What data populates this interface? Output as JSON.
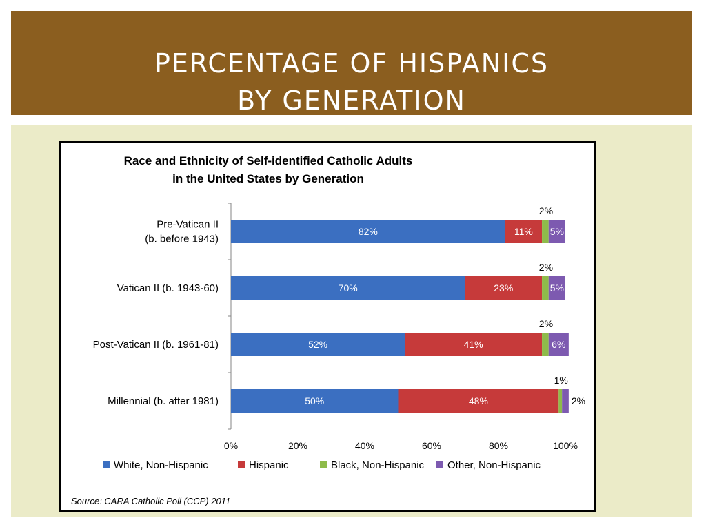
{
  "slide": {
    "title_line1": "PERCENTAGE OF HISPANICS",
    "title_line2": "BY GENERATION"
  },
  "colors": {
    "title_band": "#8b5e1f",
    "content_band": "#ebebc8",
    "series": [
      "#3b6fc1",
      "#c63a3a",
      "#8ebb4a",
      "#7d5ab0"
    ]
  },
  "chart_data": {
    "type": "bar",
    "orientation": "horizontal",
    "stacked": true,
    "title_lines": [
      "Race and Ethnicity of Self-identified Catholic Adults",
      "in the United States by Generation"
    ],
    "categories": [
      [
        "Pre-Vatican II",
        "(b. before 1943)"
      ],
      [
        "Vatican II (b. 1943-60)"
      ],
      [
        "Post-Vatican II (b. 1961-81)"
      ],
      [
        "Millennial (b. after 1981)"
      ]
    ],
    "series": [
      {
        "name": "White, Non-Hispanic",
        "values": [
          82,
          70,
          52,
          50
        ]
      },
      {
        "name": "Hispanic",
        "values": [
          11,
          23,
          41,
          48
        ]
      },
      {
        "name": "Black, Non-Hispanic",
        "values": [
          2,
          2,
          2,
          1
        ]
      },
      {
        "name": "Other, Non-Hispanic",
        "values": [
          5,
          5,
          6,
          2
        ]
      }
    ],
    "x_ticks": [
      "0%",
      "20%",
      "40%",
      "60%",
      "80%",
      "100%"
    ],
    "xlim": [
      0,
      100
    ],
    "legend_position": "bottom",
    "source": "Source: CARA Catholic Poll (CCP) 2011"
  }
}
